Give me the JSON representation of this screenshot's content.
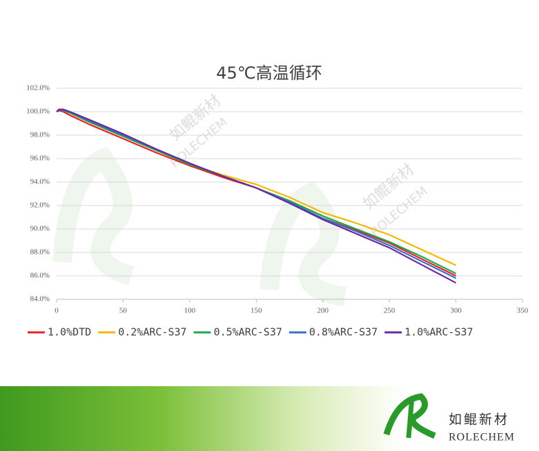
{
  "chart_data": {
    "type": "line",
    "title": "45℃高温循环",
    "x": [
      0,
      2,
      5,
      10,
      25,
      50,
      75,
      100,
      125,
      150,
      175,
      200,
      225,
      250,
      275,
      300
    ],
    "series": [
      {
        "name": "1.0%DTD",
        "color": "#e8201e",
        "values": [
          100.0,
          100.1,
          100.0,
          99.7,
          98.9,
          97.7,
          96.5,
          95.4,
          94.4,
          93.5,
          92.3,
          90.9,
          89.9,
          88.8,
          87.4,
          86.0
        ]
      },
      {
        "name": "0.2%ARC-S37",
        "color": "#f5b700",
        "values": [
          100.0,
          100.2,
          100.1,
          99.9,
          99.1,
          97.9,
          96.7,
          95.5,
          94.6,
          93.8,
          92.7,
          91.4,
          90.5,
          89.5,
          88.2,
          86.9
        ]
      },
      {
        "name": "0.5%ARC-S37",
        "color": "#1ea84a",
        "values": [
          100.0,
          100.2,
          100.1,
          99.9,
          99.1,
          97.9,
          96.7,
          95.5,
          94.5,
          93.5,
          92.4,
          91.1,
          90.0,
          88.9,
          87.6,
          86.2
        ]
      },
      {
        "name": "0.8%ARC-S37",
        "color": "#3a6fc6",
        "values": [
          100.0,
          100.2,
          100.1,
          100.0,
          99.2,
          98.0,
          96.8,
          95.6,
          94.5,
          93.5,
          92.3,
          90.9,
          89.8,
          88.6,
          87.2,
          85.8
        ]
      },
      {
        "name": "1.0%ARC-S37",
        "color": "#6a2a9c",
        "values": [
          100.0,
          100.2,
          100.2,
          100.0,
          99.3,
          98.1,
          96.8,
          95.6,
          94.5,
          93.5,
          92.2,
          90.8,
          89.6,
          88.4,
          86.9,
          85.4
        ]
      }
    ],
    "xlim": [
      0,
      350
    ],
    "xticks": [
      0,
      50,
      100,
      150,
      200,
      250,
      300,
      350
    ],
    "ylim": [
      84,
      102
    ],
    "yticks": [
      {
        "value": 84,
        "label": "84.0%"
      },
      {
        "value": 86,
        "label": "86.0%"
      },
      {
        "value": 88,
        "label": "88.0%"
      },
      {
        "value": 90,
        "label": "90.0%"
      },
      {
        "value": 92,
        "label": "92.0%"
      },
      {
        "value": 94,
        "label": "94.0%"
      },
      {
        "value": 96,
        "label": "96.0%"
      },
      {
        "value": 98,
        "label": "98.0%"
      },
      {
        "value": 100,
        "label": "100.0%"
      },
      {
        "value": 102,
        "label": "102.0%"
      }
    ],
    "grid": true,
    "legend": "bottom"
  },
  "branding": {
    "name_cn": "如鲲新材",
    "name_en": "ROLECHEM"
  }
}
